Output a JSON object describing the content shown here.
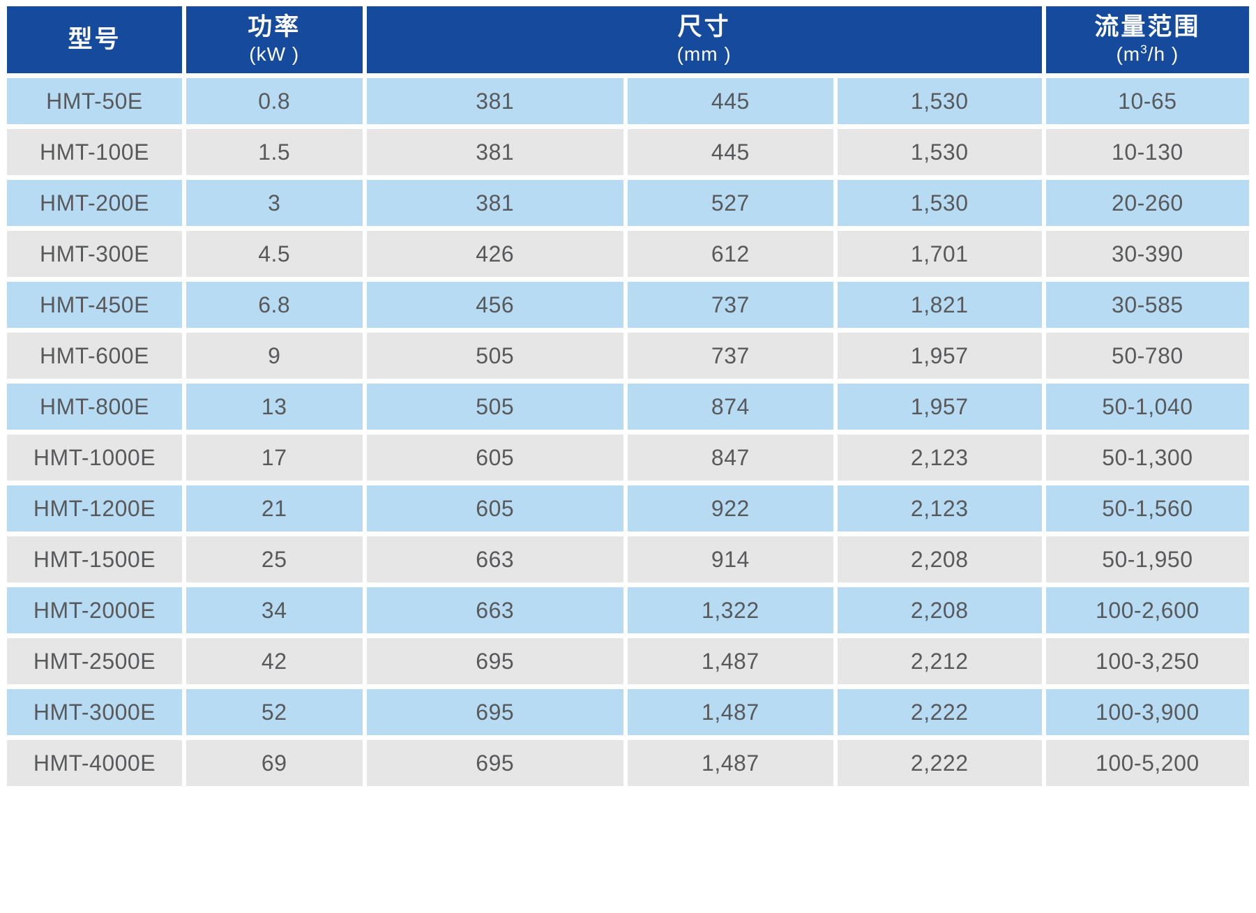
{
  "colors": {
    "header_bg": "#164a9c",
    "row_blue": "#b7dbf3",
    "row_gray": "#e6e6e6",
    "cell_text": "#58595b",
    "header_text": "#ffffff"
  },
  "header": {
    "model_label": "型号",
    "power_label": "功率",
    "power_unit": "(kW )",
    "dims_label": "尺寸",
    "dims_unit": "(mm )",
    "flow_label": "流量范围",
    "flow_unit_prefix": "(m",
    "flow_unit_sup": "3",
    "flow_unit_suffix": "/h )"
  },
  "rows": [
    [
      "HMT-50E",
      "0.8",
      "381",
      "445",
      "1,530",
      "10-65"
    ],
    [
      "HMT-100E",
      "1.5",
      "381",
      "445",
      "1,530",
      "10-130"
    ],
    [
      "HMT-200E",
      "3",
      "381",
      "527",
      "1,530",
      "20-260"
    ],
    [
      "HMT-300E",
      "4.5",
      "426",
      "612",
      "1,701",
      "30-390"
    ],
    [
      "HMT-450E",
      "6.8",
      "456",
      "737",
      "1,821",
      "30-585"
    ],
    [
      "HMT-600E",
      "9",
      "505",
      "737",
      "1,957",
      "50-780"
    ],
    [
      "HMT-800E",
      "13",
      "505",
      "874",
      "1,957",
      "50-1,040"
    ],
    [
      "HMT-1000E",
      "17",
      "605",
      "847",
      "2,123",
      "50-1,300"
    ],
    [
      "HMT-1200E",
      "21",
      "605",
      "922",
      "2,123",
      "50-1,560"
    ],
    [
      "HMT-1500E",
      "25",
      "663",
      "914",
      "2,208",
      "50-1,950"
    ],
    [
      "HMT-2000E",
      "34",
      "663",
      "1,322",
      "2,208",
      "100-2,600"
    ],
    [
      "HMT-2500E",
      "42",
      "695",
      "1,487",
      "2,212",
      "100-3,250"
    ],
    [
      "HMT-3000E",
      "52",
      "695",
      "1,487",
      "2,222",
      "100-3,900"
    ],
    [
      "HMT-4000E",
      "69",
      "695",
      "1,487",
      "2,222",
      "100-5,200"
    ]
  ]
}
